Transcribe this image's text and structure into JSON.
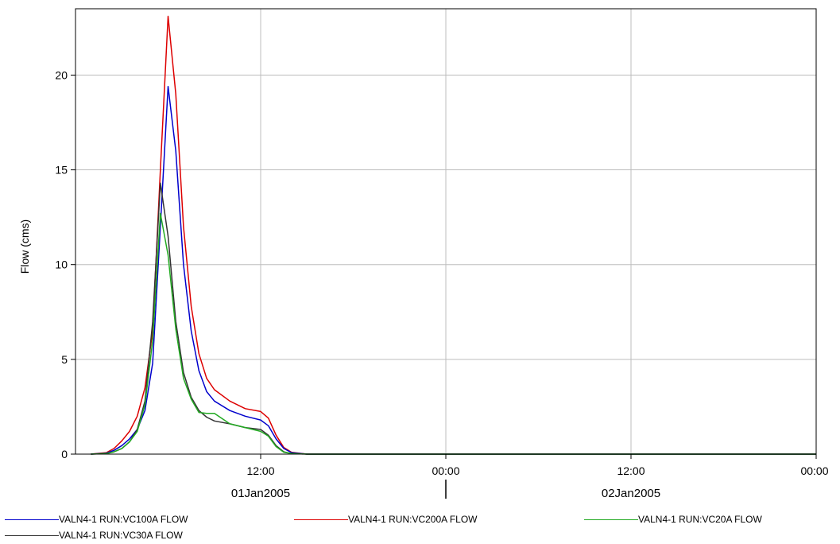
{
  "chart_data": {
    "type": "line",
    "title": "",
    "xlabel": "",
    "ylabel": "Flow (cms)",
    "x_ticks": [
      "12:00",
      "00:00",
      "12:00",
      "00:00"
    ],
    "x_date_labels": [
      "01Jan2005",
      "02Jan2005"
    ],
    "y_ticks": [
      0,
      5,
      10,
      15,
      20
    ],
    "xlim": [
      "2005-01-01T00:00",
      "2005-01-03T00:00"
    ],
    "ylim": [
      0,
      23.5
    ],
    "grid": true,
    "legend": "bottom",
    "series": [
      {
        "name": "VALN4-1 RUN:VC100A FLOW",
        "color": "#0000cc",
        "points": [
          [
            "2005-01-01T01:00",
            0
          ],
          [
            "2005-01-01T02:00",
            0.05
          ],
          [
            "2005-01-01T02:30",
            0.2
          ],
          [
            "2005-01-01T03:00",
            0.45
          ],
          [
            "2005-01-01T03:30",
            0.8
          ],
          [
            "2005-01-01T04:00",
            1.3
          ],
          [
            "2005-01-01T04:30",
            2.3
          ],
          [
            "2005-01-01T05:00",
            4.8
          ],
          [
            "2005-01-01T05:30",
            12.0
          ],
          [
            "2005-01-01T06:00",
            19.4
          ],
          [
            "2005-01-01T06:30",
            16.0
          ],
          [
            "2005-01-01T07:00",
            10.0
          ],
          [
            "2005-01-01T07:30",
            6.5
          ],
          [
            "2005-01-01T08:00",
            4.4
          ],
          [
            "2005-01-01T08:30",
            3.3
          ],
          [
            "2005-01-01T09:00",
            2.8
          ],
          [
            "2005-01-01T10:00",
            2.3
          ],
          [
            "2005-01-01T11:00",
            2.0
          ],
          [
            "2005-01-01T12:00",
            1.8
          ],
          [
            "2005-01-01T12:30",
            1.5
          ],
          [
            "2005-01-01T13:00",
            0.8
          ],
          [
            "2005-01-01T13:30",
            0.3
          ],
          [
            "2005-01-01T14:00",
            0.08
          ],
          [
            "2005-01-01T15:00",
            0
          ],
          [
            "2005-01-03T00:00",
            0
          ]
        ]
      },
      {
        "name": "VALN4-1 RUN:VC200A FLOW",
        "color": "#dd0000",
        "points": [
          [
            "2005-01-01T01:00",
            0
          ],
          [
            "2005-01-01T02:00",
            0.08
          ],
          [
            "2005-01-01T02:30",
            0.3
          ],
          [
            "2005-01-01T03:00",
            0.7
          ],
          [
            "2005-01-01T03:30",
            1.2
          ],
          [
            "2005-01-01T04:00",
            2.0
          ],
          [
            "2005-01-01T04:30",
            3.5
          ],
          [
            "2005-01-01T05:00",
            6.5
          ],
          [
            "2005-01-01T05:30",
            15.0
          ],
          [
            "2005-01-01T06:00",
            23.1
          ],
          [
            "2005-01-01T06:30",
            19.0
          ],
          [
            "2005-01-01T07:00",
            12.0
          ],
          [
            "2005-01-01T07:30",
            7.8
          ],
          [
            "2005-01-01T08:00",
            5.3
          ],
          [
            "2005-01-01T08:30",
            4.0
          ],
          [
            "2005-01-01T09:00",
            3.4
          ],
          [
            "2005-01-01T10:00",
            2.8
          ],
          [
            "2005-01-01T11:00",
            2.4
          ],
          [
            "2005-01-01T12:00",
            2.25
          ],
          [
            "2005-01-01T12:30",
            1.9
          ],
          [
            "2005-01-01T13:00",
            1.0
          ],
          [
            "2005-01-01T13:30",
            0.35
          ],
          [
            "2005-01-01T14:00",
            0.1
          ],
          [
            "2005-01-01T15:00",
            0
          ],
          [
            "2005-01-03T00:00",
            0
          ]
        ]
      },
      {
        "name": "VALN4-1 RUN:VC20A FLOW",
        "color": "#22aa22",
        "points": [
          [
            "2005-01-01T01:00",
            0
          ],
          [
            "2005-01-01T02:00",
            0.03
          ],
          [
            "2005-01-01T02:30",
            0.12
          ],
          [
            "2005-01-01T03:00",
            0.3
          ],
          [
            "2005-01-01T03:30",
            0.65
          ],
          [
            "2005-01-01T04:00",
            1.2
          ],
          [
            "2005-01-01T04:30",
            2.6
          ],
          [
            "2005-01-01T05:00",
            6.0
          ],
          [
            "2005-01-01T05:30",
            12.7
          ],
          [
            "2005-01-01T06:00",
            10.5
          ],
          [
            "2005-01-01T06:30",
            6.6
          ],
          [
            "2005-01-01T07:00",
            4.0
          ],
          [
            "2005-01-01T07:30",
            2.9
          ],
          [
            "2005-01-01T08:00",
            2.2
          ],
          [
            "2005-01-01T08:30",
            2.15
          ],
          [
            "2005-01-01T09:00",
            2.15
          ],
          [
            "2005-01-01T10:00",
            1.6
          ],
          [
            "2005-01-01T11:00",
            1.4
          ],
          [
            "2005-01-01T12:00",
            1.2
          ],
          [
            "2005-01-01T12:30",
            0.95
          ],
          [
            "2005-01-01T13:00",
            0.4
          ],
          [
            "2005-01-01T13:30",
            0.1
          ],
          [
            "2005-01-01T14:00",
            0.03
          ],
          [
            "2005-01-01T15:00",
            0
          ],
          [
            "2005-01-03T00:00",
            0
          ]
        ]
      },
      {
        "name": "VALN4-1 RUN:VC30A FLOW",
        "color": "#333333",
        "points": [
          [
            "2005-01-01T01:00",
            0
          ],
          [
            "2005-01-01T02:00",
            0.03
          ],
          [
            "2005-01-01T02:30",
            0.12
          ],
          [
            "2005-01-01T03:00",
            0.3
          ],
          [
            "2005-01-01T03:30",
            0.65
          ],
          [
            "2005-01-01T04:00",
            1.3
          ],
          [
            "2005-01-01T04:30",
            2.8
          ],
          [
            "2005-01-01T05:00",
            7.0
          ],
          [
            "2005-01-01T05:30",
            14.3
          ],
          [
            "2005-01-01T06:00",
            11.5
          ],
          [
            "2005-01-01T06:30",
            7.0
          ],
          [
            "2005-01-01T07:00",
            4.3
          ],
          [
            "2005-01-01T07:30",
            3.0
          ],
          [
            "2005-01-01T08:00",
            2.3
          ],
          [
            "2005-01-01T08:30",
            1.95
          ],
          [
            "2005-01-01T09:00",
            1.75
          ],
          [
            "2005-01-01T10:00",
            1.6
          ],
          [
            "2005-01-01T11:00",
            1.4
          ],
          [
            "2005-01-01T12:00",
            1.3
          ],
          [
            "2005-01-01T12:30",
            1.0
          ],
          [
            "2005-01-01T13:00",
            0.45
          ],
          [
            "2005-01-01T13:30",
            0.12
          ],
          [
            "2005-01-01T14:00",
            0.03
          ],
          [
            "2005-01-01T15:00",
            0
          ],
          [
            "2005-01-03T00:00",
            0
          ]
        ]
      }
    ]
  }
}
